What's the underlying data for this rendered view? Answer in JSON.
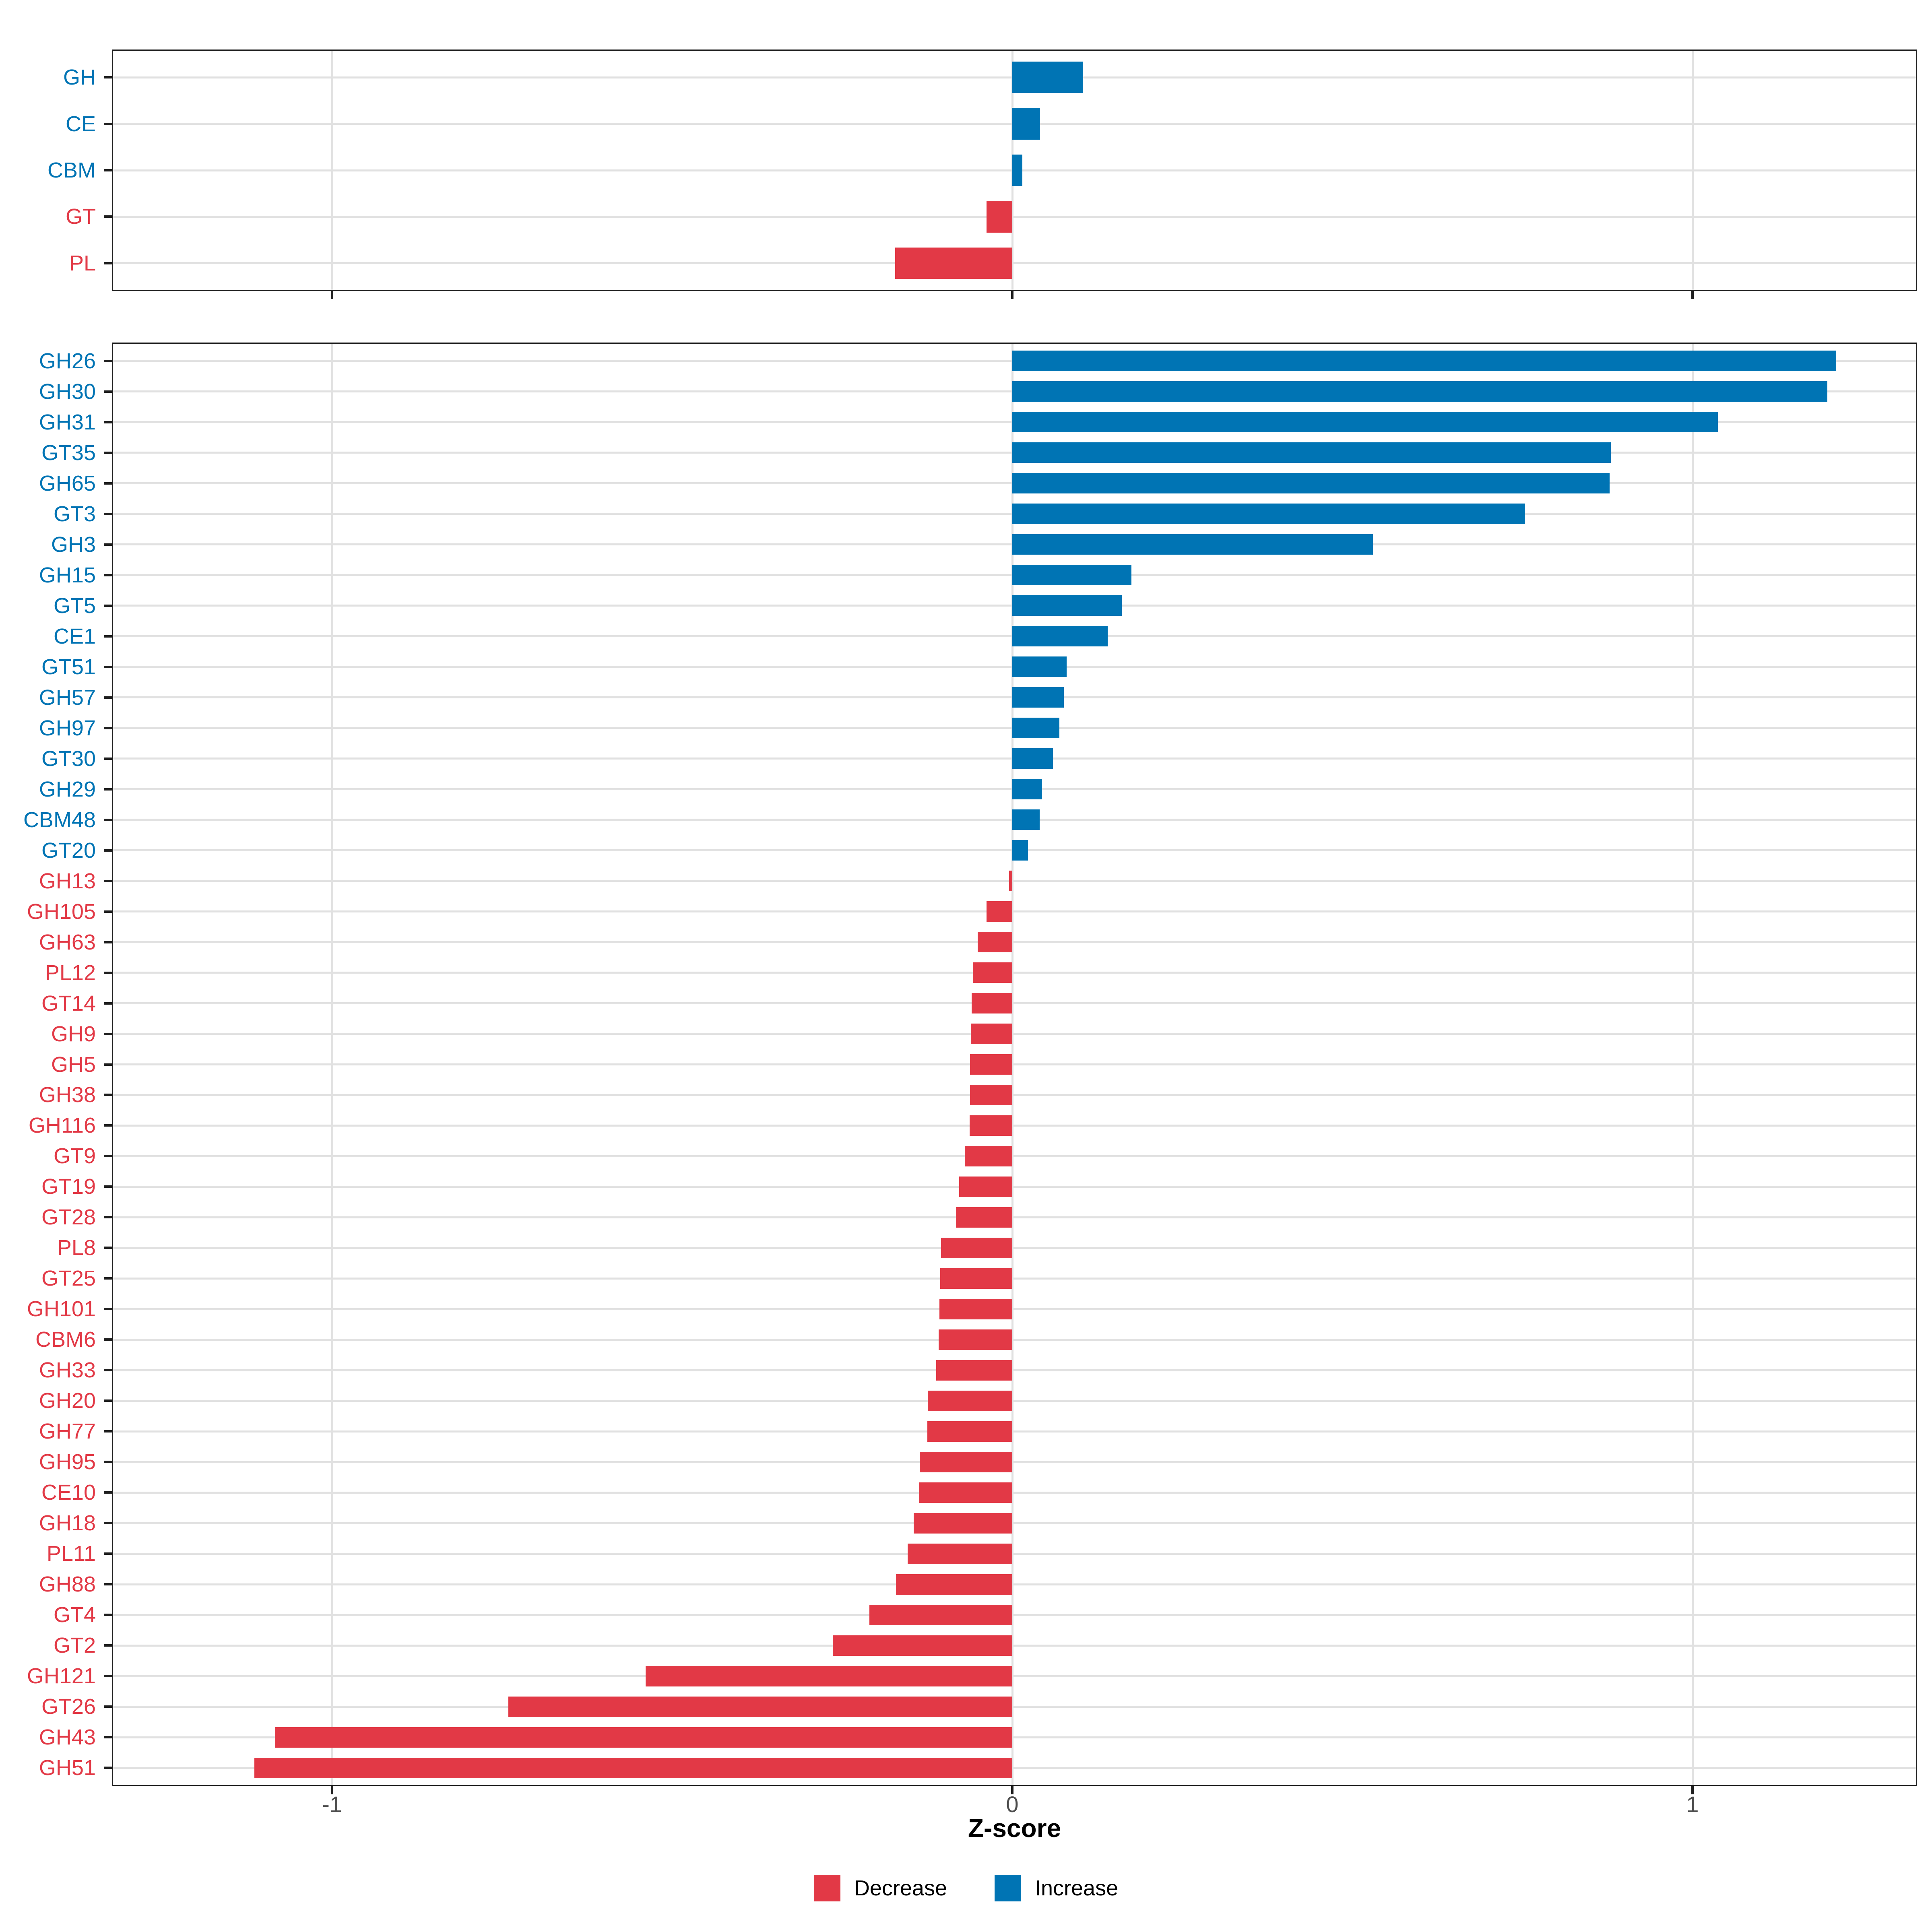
{
  "colors": {
    "increase": "#0074B4",
    "decrease": "#E23946",
    "grid": "#E1E1E1",
    "panel_border": "#1f1f1f",
    "tick_label": "#4D4D4D",
    "background": "#ffffff"
  },
  "axis": {
    "label": "Z-score",
    "tick_values": [
      -1,
      0,
      1
    ],
    "tick_labels": [
      "-1",
      "0",
      "1"
    ]
  },
  "legend": {
    "items": [
      {
        "label": "Decrease",
        "color_key": "decrease"
      },
      {
        "label": "Increase",
        "color_key": "increase"
      }
    ],
    "position": "bottom"
  },
  "chart_data": [
    {
      "id": "summary",
      "type": "bar",
      "orientation": "horizontal",
      "title": "",
      "xlabel": "Z-score",
      "xlim": [
        -1.32,
        1.33
      ],
      "grid": true,
      "categories": [
        "GH",
        "CE",
        "CBM",
        "GT",
        "PL"
      ],
      "values": [
        0.104,
        0.041,
        0.015,
        -0.038,
        -0.172
      ],
      "directions": [
        "increase",
        "increase",
        "increase",
        "decrease",
        "decrease"
      ]
    },
    {
      "id": "families",
      "type": "bar",
      "orientation": "horizontal",
      "title": "",
      "xlabel": "Z-score",
      "xlim": [
        -1.32,
        1.33
      ],
      "grid": true,
      "categories": [
        "GH26",
        "GH30",
        "GH31",
        "GT35",
        "GH65",
        "GT3",
        "GH3",
        "GH15",
        "GT5",
        "CE1",
        "GT51",
        "GH57",
        "GH97",
        "GT30",
        "GH29",
        "CBM48",
        "GT20",
        "GH13",
        "GH105",
        "GH63",
        "PL12",
        "GT14",
        "GH9",
        "GH5",
        "GH38",
        "GH116",
        "GT9",
        "GT19",
        "GT28",
        "PL8",
        "GT25",
        "GH101",
        "CBM6",
        "GH33",
        "GH20",
        "GH77",
        "GH95",
        "CE10",
        "GH18",
        "PL11",
        "GH88",
        "GT4",
        "GT2",
        "GH121",
        "GT26",
        "GH43",
        "GH51"
      ],
      "values": [
        1.211,
        1.198,
        1.037,
        0.88,
        0.878,
        0.754,
        0.53,
        0.175,
        0.161,
        0.14,
        0.08,
        0.076,
        0.069,
        0.06,
        0.044,
        0.04,
        0.023,
        -0.005,
        -0.038,
        -0.051,
        -0.058,
        -0.06,
        -0.061,
        -0.062,
        -0.062,
        -0.063,
        -0.07,
        -0.078,
        -0.083,
        -0.105,
        -0.106,
        -0.107,
        -0.108,
        -0.112,
        -0.124,
        -0.125,
        -0.136,
        -0.137,
        -0.145,
        -0.154,
        -0.171,
        -0.21,
        -0.264,
        -0.539,
        -0.741,
        -1.084,
        -1.114
      ],
      "directions": [
        "increase",
        "increase",
        "increase",
        "increase",
        "increase",
        "increase",
        "increase",
        "increase",
        "increase",
        "increase",
        "increase",
        "increase",
        "increase",
        "increase",
        "increase",
        "increase",
        "increase",
        "decrease",
        "decrease",
        "decrease",
        "decrease",
        "decrease",
        "decrease",
        "decrease",
        "decrease",
        "decrease",
        "decrease",
        "decrease",
        "decrease",
        "decrease",
        "decrease",
        "decrease",
        "decrease",
        "decrease",
        "decrease",
        "decrease",
        "decrease",
        "decrease",
        "decrease",
        "decrease",
        "decrease",
        "decrease",
        "decrease",
        "decrease",
        "decrease",
        "decrease",
        "decrease"
      ]
    }
  ]
}
